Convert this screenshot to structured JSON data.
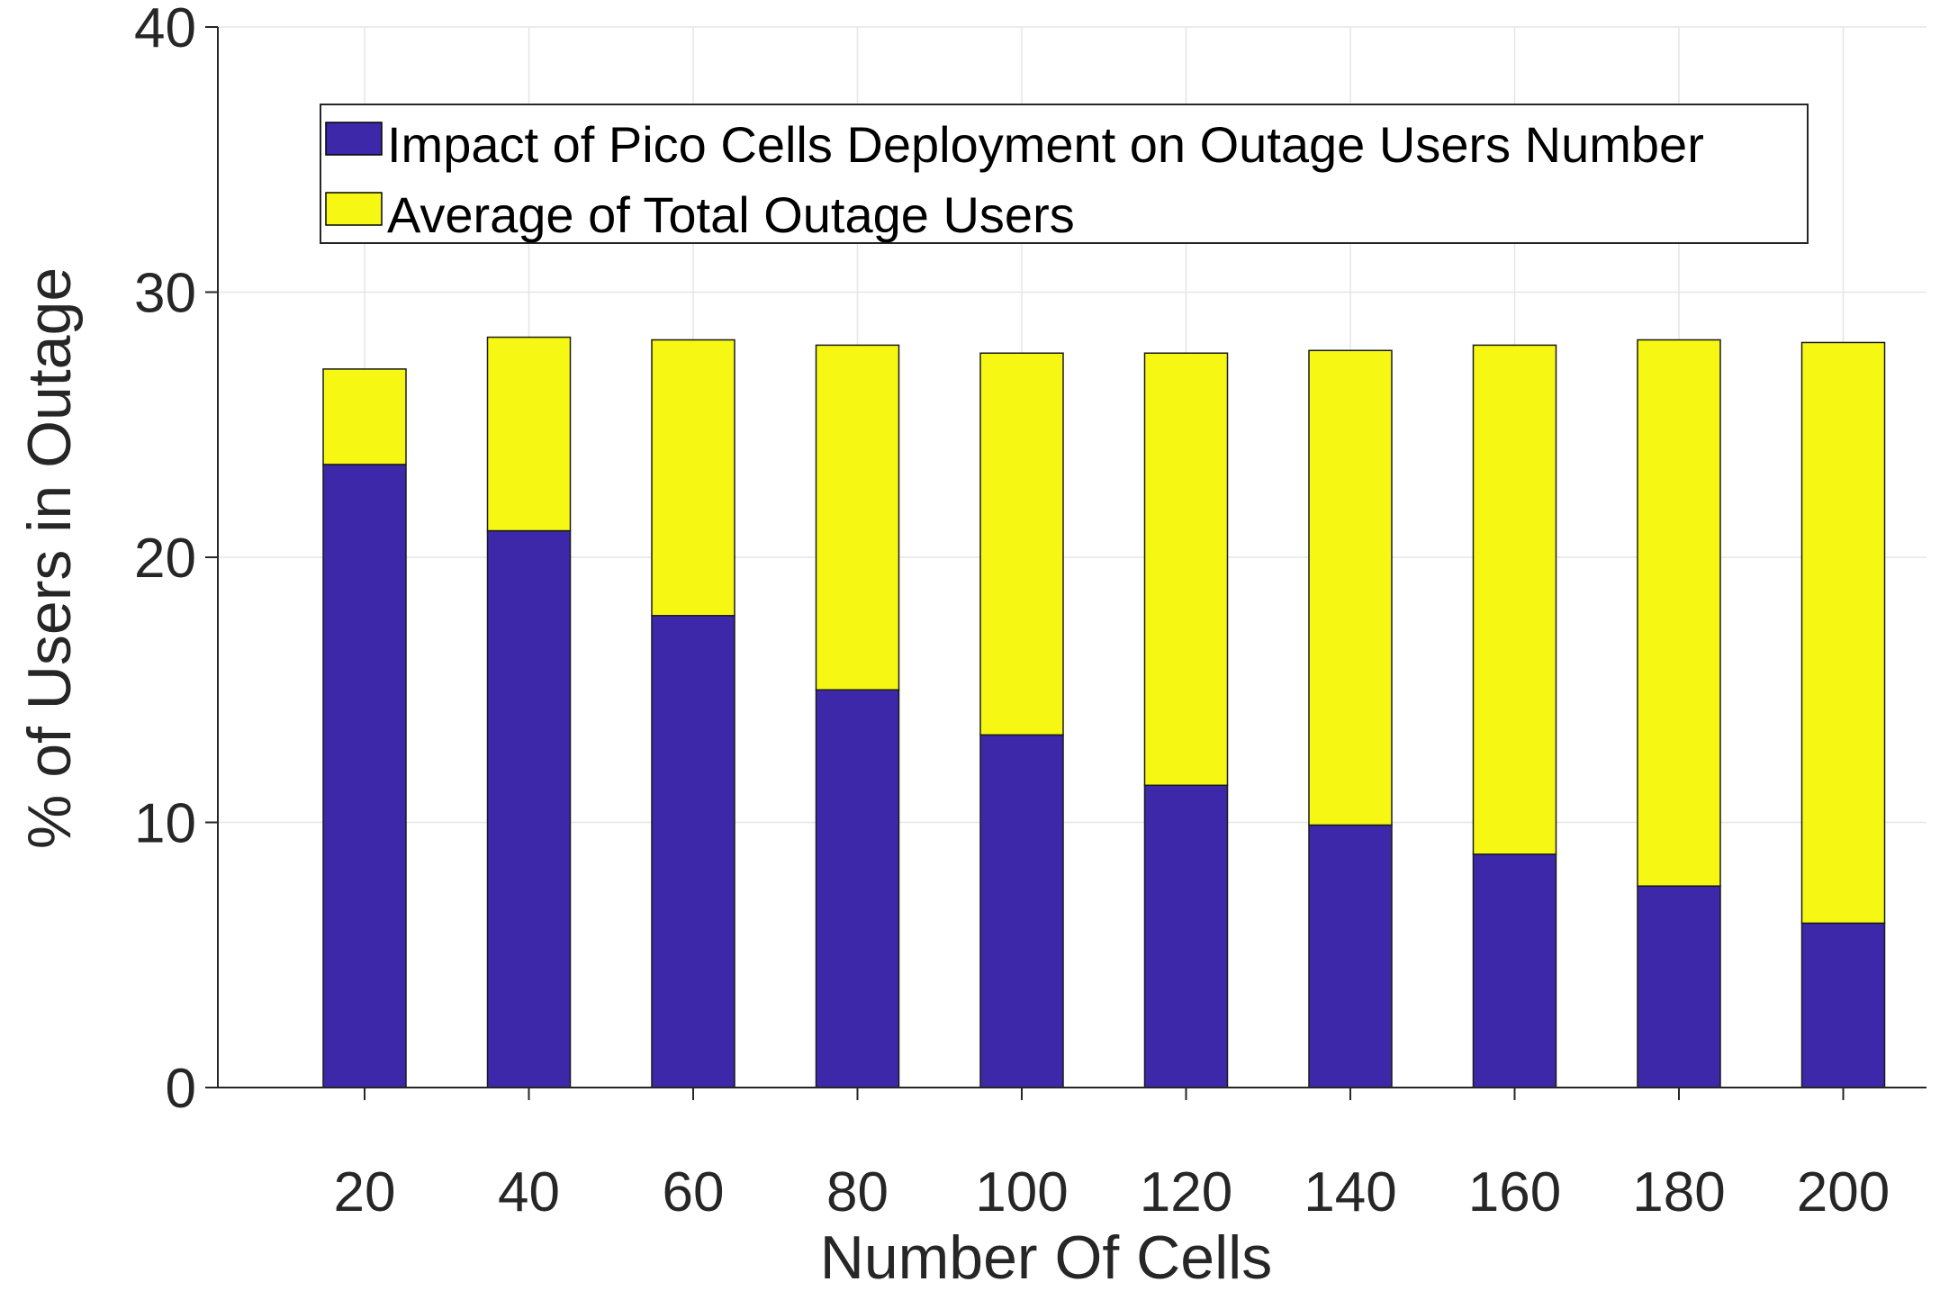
{
  "chart_data": {
    "type": "bar",
    "stacked": true,
    "categories": [
      "20",
      "40",
      "60",
      "80",
      "100",
      "120",
      "140",
      "160",
      "180",
      "200"
    ],
    "series": [
      {
        "name": "Impact of Pico Cells Deployment on Outage Users Number",
        "color": "#3C28A8",
        "values": [
          23.5,
          21.0,
          17.8,
          15.0,
          13.3,
          11.4,
          9.9,
          8.8,
          7.6,
          6.2
        ]
      },
      {
        "name": "Average of Total Outage Users",
        "color": "#F6F814",
        "values": [
          3.6,
          7.3,
          10.4,
          13.0,
          14.4,
          16.3,
          17.9,
          19.2,
          20.6,
          21.9
        ]
      }
    ],
    "xlabel": "Number Of Cells",
    "ylabel": "% of Users in Outage",
    "ylim": [
      0,
      40
    ],
    "yticks": [
      0,
      10,
      20,
      30,
      40
    ],
    "grid": true,
    "legend_position": "top"
  }
}
